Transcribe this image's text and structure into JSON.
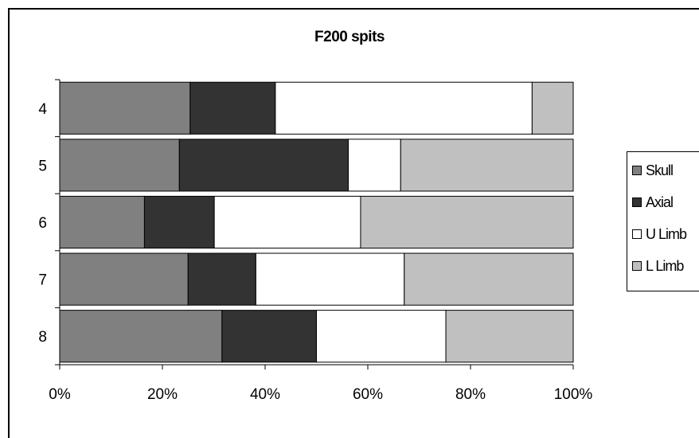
{
  "chart_data": {
    "type": "bar",
    "orientation": "horizontal",
    "stacked": "percent",
    "title": "F200 spits",
    "xlabel": "",
    "ylabel": "",
    "categories": [
      "4",
      "5",
      "6",
      "7",
      "8"
    ],
    "series": [
      {
        "name": "Skull",
        "color": "#808080",
        "values": [
          25.4,
          23.3,
          16.5,
          25.0,
          31.6
        ]
      },
      {
        "name": "Axial",
        "color": "#333333",
        "values": [
          16.6,
          32.9,
          13.6,
          13.2,
          18.4
        ]
      },
      {
        "name": "U Limb",
        "color": "#ffffff",
        "values": [
          50.0,
          10.2,
          28.5,
          28.9,
          25.2
        ]
      },
      {
        "name": "L Limb",
        "color": "#c0c0c0",
        "values": [
          8.0,
          33.6,
          41.4,
          32.9,
          24.8
        ]
      }
    ],
    "x_ticks": [
      "0%",
      "20%",
      "40%",
      "60%",
      "80%",
      "100%"
    ],
    "xlim": [
      0,
      100
    ],
    "grid": false,
    "legend_position": "right"
  }
}
